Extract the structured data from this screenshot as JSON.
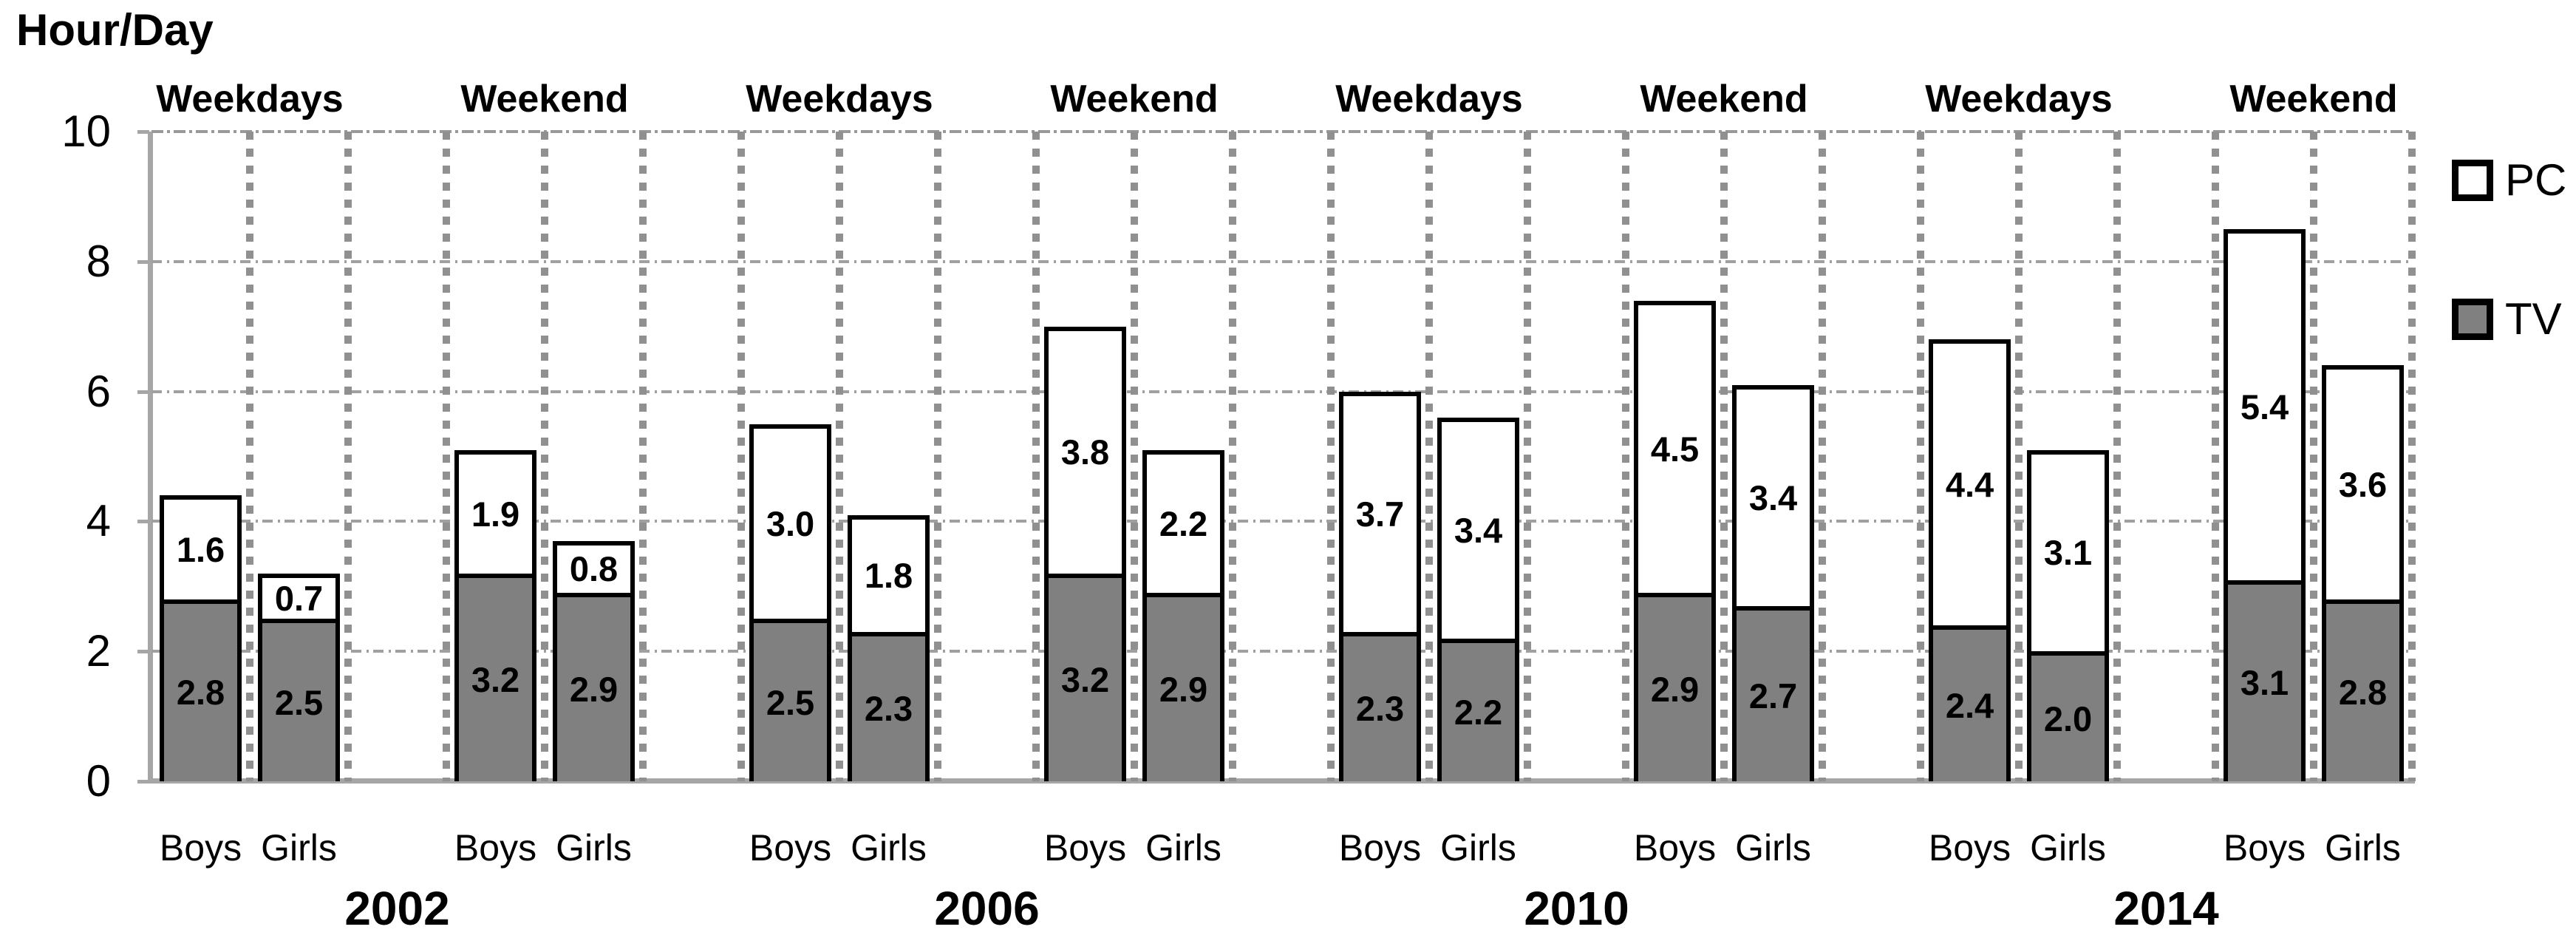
{
  "title": "Hour/Day",
  "legend": {
    "items": [
      {
        "label": "PC",
        "color": "#ffffff"
      },
      {
        "label": "TV",
        "color": "#808080"
      }
    ]
  },
  "axis": {
    "yticks": [
      "0",
      "2",
      "4",
      "6",
      "8",
      "10"
    ],
    "sex_labels": [
      "Boys",
      "Girls"
    ],
    "daytype_labels": [
      "Weekdays",
      "Weekend"
    ],
    "year_labels": [
      "2002",
      "2006",
      "2010",
      "2014"
    ]
  },
  "chart_data": {
    "type": "bar",
    "stacked": true,
    "title": "Hour/Day",
    "ylabel": "Hour/Day",
    "ylim": [
      0,
      10
    ],
    "yticks": [
      0,
      2,
      4,
      6,
      8,
      10
    ],
    "grid": true,
    "legend_position": "right",
    "stack_order_bottom_to_top": [
      "TV",
      "PC"
    ],
    "colors": {
      "PC": "#ffffff",
      "TV": "#808080",
      "bar_border": "#000000",
      "axis": "#a6a6a6",
      "gridline": "#a0a0a0",
      "column_divider": "#909090"
    },
    "groups": [
      {
        "year": "2002",
        "sections": [
          {
            "label": "Weekdays",
            "bars": [
              {
                "category": "Boys",
                "TV": 2.8,
                "PC": 1.6
              },
              {
                "category": "Girls",
                "TV": 2.5,
                "PC": 0.7
              }
            ]
          },
          {
            "label": "Weekend",
            "bars": [
              {
                "category": "Boys",
                "TV": 3.2,
                "PC": 1.9
              },
              {
                "category": "Girls",
                "TV": 2.9,
                "PC": 0.8
              }
            ]
          }
        ]
      },
      {
        "year": "2006",
        "sections": [
          {
            "label": "Weekdays",
            "bars": [
              {
                "category": "Boys",
                "TV": 2.5,
                "PC": 3.0
              },
              {
                "category": "Girls",
                "TV": 2.3,
                "PC": 1.8
              }
            ]
          },
          {
            "label": "Weekend",
            "bars": [
              {
                "category": "Boys",
                "TV": 3.2,
                "PC": 3.8
              },
              {
                "category": "Girls",
                "TV": 2.9,
                "PC": 2.2
              }
            ]
          }
        ]
      },
      {
        "year": "2010",
        "sections": [
          {
            "label": "Weekdays",
            "bars": [
              {
                "category": "Boys",
                "TV": 2.3,
                "PC": 3.7
              },
              {
                "category": "Girls",
                "TV": 2.2,
                "PC": 3.4
              }
            ]
          },
          {
            "label": "Weekend",
            "bars": [
              {
                "category": "Boys",
                "TV": 2.9,
                "PC": 4.5
              },
              {
                "category": "Girls",
                "TV": 2.7,
                "PC": 3.4
              }
            ]
          }
        ]
      },
      {
        "year": "2014",
        "sections": [
          {
            "label": "Weekdays",
            "bars": [
              {
                "category": "Boys",
                "TV": 2.4,
                "PC": 4.4
              },
              {
                "category": "Girls",
                "TV": 2.0,
                "PC": 3.1
              }
            ]
          },
          {
            "label": "Weekend",
            "bars": [
              {
                "category": "Boys",
                "TV": 3.1,
                "PC": 5.4
              },
              {
                "category": "Girls",
                "TV": 2.8,
                "PC": 3.6
              }
            ]
          }
        ]
      }
    ]
  }
}
